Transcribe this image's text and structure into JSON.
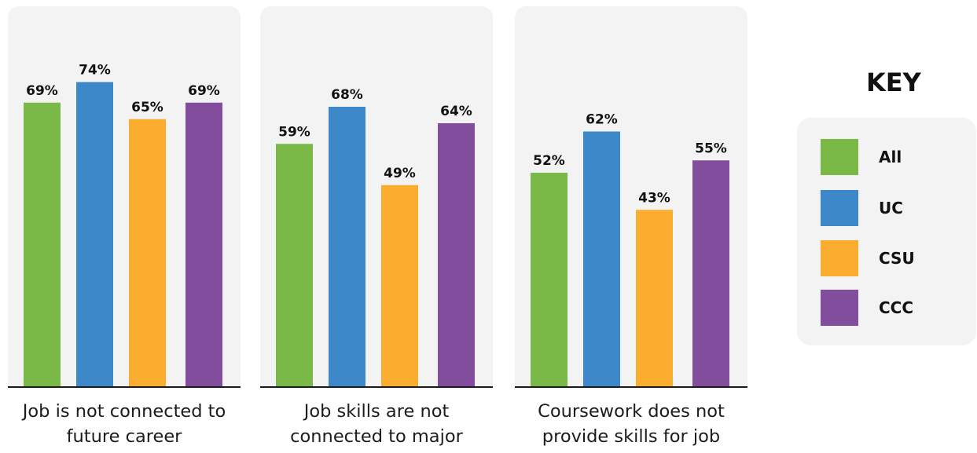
{
  "colors": {
    "All": "#7ab948",
    "UC": "#3c88c8",
    "CSU": "#fbad30",
    "CCC": "#834d9e"
  },
  "chart_data": [
    {
      "type": "bar",
      "categories": [
        "All",
        "UC",
        "CSU",
        "CCC"
      ],
      "values": [
        69,
        74,
        65,
        69
      ],
      "labels": [
        "69%",
        "74%",
        "65%",
        "69%"
      ],
      "caption_lines": [
        "Job is not connected to",
        "future career"
      ],
      "unit": "%",
      "ylim": [
        0,
        100
      ]
    },
    {
      "type": "bar",
      "categories": [
        "All",
        "UC",
        "CSU",
        "CCC"
      ],
      "values": [
        59,
        68,
        49,
        64
      ],
      "labels": [
        "59%",
        "68%",
        "49%",
        "64%"
      ],
      "caption_lines": [
        "Job skills are not",
        "connected to major"
      ],
      "unit": "%",
      "ylim": [
        0,
        100
      ]
    },
    {
      "type": "bar",
      "categories": [
        "All",
        "UC",
        "CSU",
        "CCC"
      ],
      "values": [
        52,
        62,
        43,
        55
      ],
      "labels": [
        "52%",
        "62%",
        "43%",
        "55%"
      ],
      "caption_lines": [
        "Coursework does not",
        "provide skills for job"
      ],
      "unit": "%",
      "ylim": [
        0,
        100
      ]
    }
  ],
  "key": {
    "title": "KEY",
    "items": [
      {
        "label": "All",
        "color": "#7ab948"
      },
      {
        "label": "UC",
        "color": "#3c88c8"
      },
      {
        "label": "CSU",
        "color": "#fbad30"
      },
      {
        "label": "CCC",
        "color": "#834d9e"
      }
    ]
  }
}
